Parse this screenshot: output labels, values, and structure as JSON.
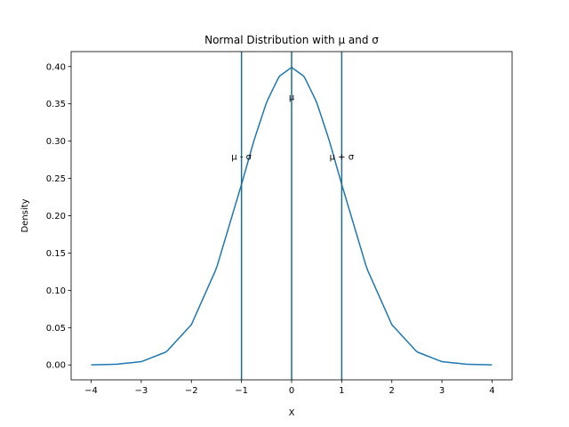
{
  "chart_data": {
    "type": "line",
    "title": "Normal Distribution with μ and σ",
    "xlabel": "X",
    "ylabel": "Density",
    "xlim": [
      -4.4,
      4.4
    ],
    "ylim": [
      -0.02,
      0.42
    ],
    "x_ticks": [
      -4,
      -3,
      -2,
      -1,
      0,
      1,
      2,
      3,
      4
    ],
    "x_tick_labels": [
      "−4",
      "−3",
      "−2",
      "−1",
      "0",
      "1",
      "2",
      "3",
      "4"
    ],
    "y_ticks": [
      0.0,
      0.05,
      0.1,
      0.15,
      0.2,
      0.25,
      0.3,
      0.35,
      0.4
    ],
    "y_tick_labels": [
      "0.00",
      "0.05",
      "0.10",
      "0.15",
      "0.20",
      "0.25",
      "0.30",
      "0.35",
      "0.40"
    ],
    "grid": false,
    "series": [
      {
        "color": "#1f77b4",
        "x": [
          -4.0,
          -3.5,
          -3.0,
          -2.5,
          -2.0,
          -1.5,
          -1.0,
          -0.75,
          -0.5,
          -0.25,
          0.0,
          0.25,
          0.5,
          0.75,
          1.0,
          1.5,
          2.0,
          2.5,
          3.0,
          3.5,
          4.0
        ],
        "y": [
          0.0001,
          0.0009,
          0.0044,
          0.0175,
          0.054,
          0.1295,
          0.242,
          0.3011,
          0.3521,
          0.3867,
          0.3989,
          0.3867,
          0.3521,
          0.3011,
          0.242,
          0.1295,
          0.054,
          0.0175,
          0.0044,
          0.0009,
          0.0001
        ]
      }
    ],
    "vlines": [
      {
        "x": -1,
        "label": "μ - σ",
        "label_y": 0.28,
        "color": "#1f6f8b"
      },
      {
        "x": 0,
        "label": "μ",
        "label_y": 0.36,
        "color": "#1f6f8b"
      },
      {
        "x": 1,
        "label": "μ + σ",
        "label_y": 0.28,
        "color": "#1f6f8b"
      }
    ]
  }
}
